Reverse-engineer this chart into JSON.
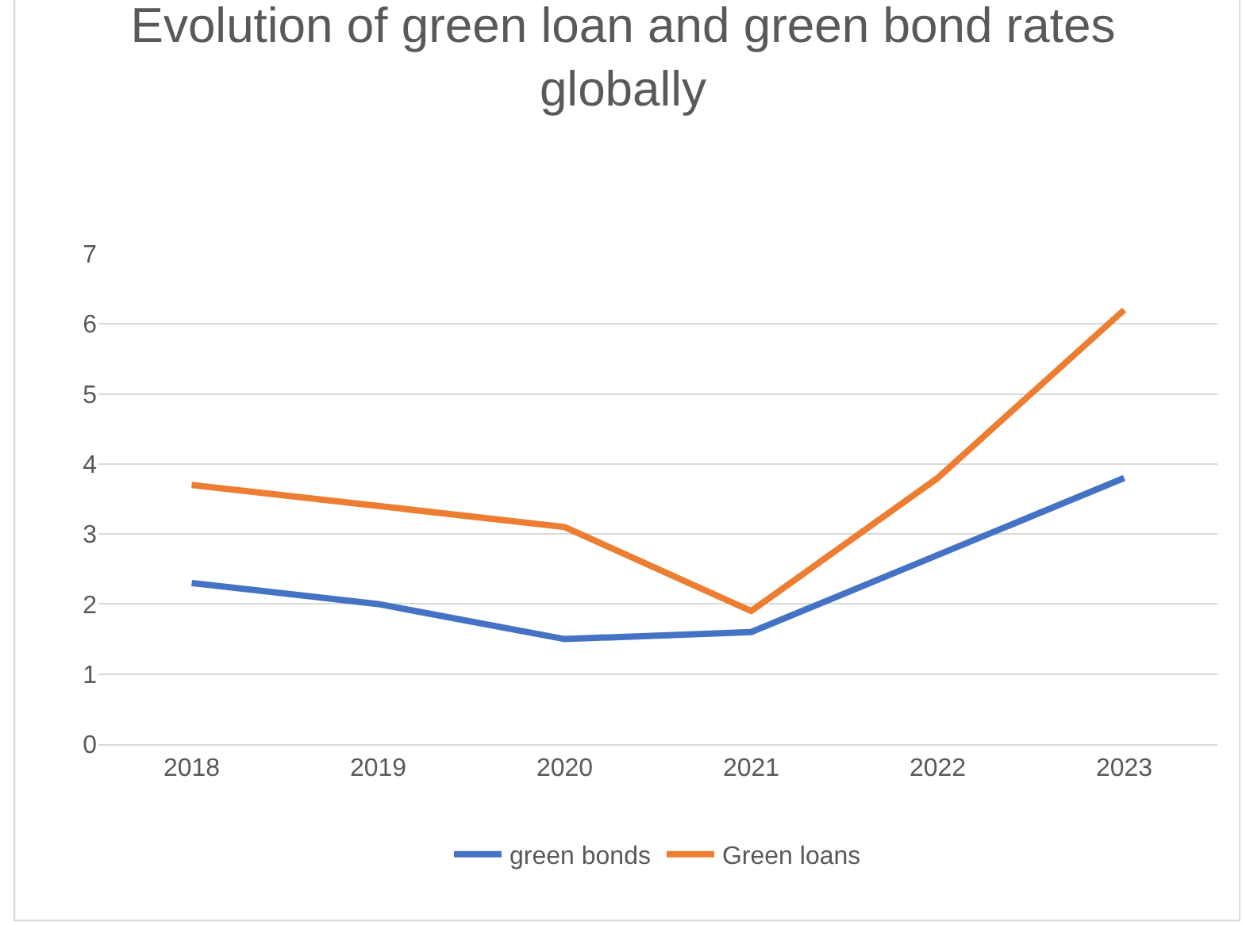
{
  "chart_data": {
    "type": "line",
    "title": "Evolution of green loan and green bond rates globally",
    "categories": [
      "2018",
      "2019",
      "2020",
      "2021",
      "2022",
      "2023"
    ],
    "series": [
      {
        "name": "green bonds",
        "color": "#4472c4",
        "values": [
          2.3,
          2.0,
          1.5,
          1.6,
          2.7,
          3.8
        ]
      },
      {
        "name": "Green loans",
        "color": "#ed7d31",
        "values": [
          3.7,
          3.4,
          3.1,
          1.9,
          3.8,
          6.2
        ]
      }
    ],
    "ylim": [
      0,
      7
    ],
    "yticks": [
      0,
      1,
      2,
      3,
      4,
      5,
      6,
      7
    ],
    "grid": "y",
    "legend": "bottom",
    "marker": "none",
    "line_style": "solid"
  }
}
